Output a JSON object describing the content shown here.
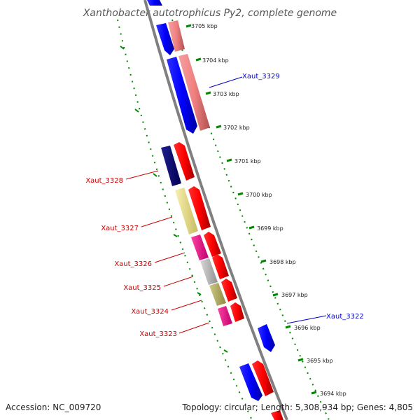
{
  "title": "Xanthobacter autotrophicus Py2, complete genome",
  "footer": {
    "accession": "Accession: NC_009720",
    "topology": "Topology: circular; Length: 5,308,934 bp; Genes: 4,805"
  },
  "ticks": [
    {
      "label": "3705 kbp",
      "kbp": 3705
    },
    {
      "label": "3704 kbp",
      "kbp": 3704
    },
    {
      "label": "3703 kbp",
      "kbp": 3703
    },
    {
      "label": "3702 kbp",
      "kbp": 3702
    },
    {
      "label": "3701 kbp",
      "kbp": 3701
    },
    {
      "label": "3700 kbp",
      "kbp": 3700
    },
    {
      "label": "3699 kbp",
      "kbp": 3699
    },
    {
      "label": "3698 kbp",
      "kbp": 3698
    },
    {
      "label": "3697 kbp",
      "kbp": 3697
    },
    {
      "label": "3696 kbp",
      "kbp": 3696
    },
    {
      "label": "3695 kbp",
      "kbp": 3695
    },
    {
      "label": "3694 kbp",
      "kbp": 3694
    }
  ],
  "gene_labels": [
    {
      "label": "Xaut_3329",
      "color": "#0000cc"
    },
    {
      "label": "Xaut_3328",
      "color": "#cc0000"
    },
    {
      "label": "Xaut_3327",
      "color": "#cc0000"
    },
    {
      "label": "Xaut_3326",
      "color": "#cc0000"
    },
    {
      "label": "Xaut_3325",
      "color": "#cc0000"
    },
    {
      "label": "Xaut_3324",
      "color": "#cc0000"
    },
    {
      "label": "Xaut_3323",
      "color": "#cc0000"
    },
    {
      "label": "Xaut_3322",
      "color": "#0000cc"
    }
  ],
  "colors": {
    "backbone": "#808080",
    "tick_dots": "#008800",
    "forward_red": "#ff0000",
    "salmon": "#f08080",
    "reverse_blue": "#0000ff",
    "navy": "#000080",
    "khaki": "#f0e68c",
    "deep_pink": "#ff1493",
    "silver": "#c0c0c0",
    "dark_khaki": "#bdb76b"
  }
}
